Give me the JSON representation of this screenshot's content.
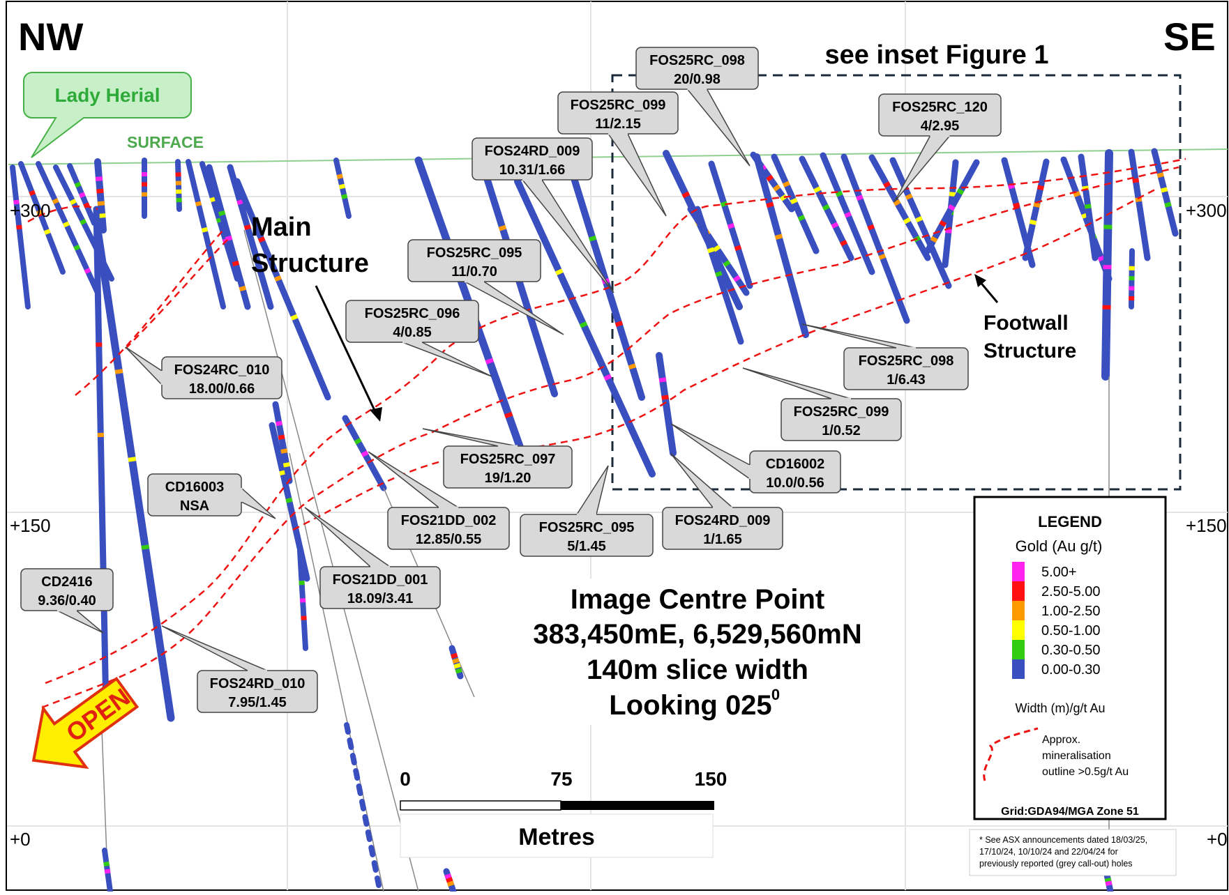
{
  "directions": {
    "left": "NW",
    "right": "SE"
  },
  "inset_title": "see inset Figure 1",
  "deposit_label": "Lady Herial",
  "surface_label": "SURFACE",
  "structures": {
    "main": [
      "Main",
      "Structure"
    ],
    "footwall": [
      "Footwall",
      "Structure"
    ]
  },
  "elevations": {
    "left": [
      "+300",
      "+150",
      "+0"
    ],
    "right": [
      "+300",
      "+150",
      "+0"
    ]
  },
  "open_label": "OPEN",
  "callouts": [
    {
      "hole": "FOS25RC_098",
      "result": "20/0.98"
    },
    {
      "hole": "FOS25RC_099",
      "result": "11/2.15"
    },
    {
      "hole": "FOS24RD_009",
      "result": "10.31/1.66"
    },
    {
      "hole": "FOS25RC_120",
      "result": "4/2.95"
    },
    {
      "hole": "FOS25RC_095",
      "result": "11/0.70"
    },
    {
      "hole": "FOS25RC_096",
      "result": "4/0.85"
    },
    {
      "hole": "FOS24RC_010",
      "result": "18.00/0.66"
    },
    {
      "hole": "FOS25RC_098",
      "result": "1/6.43"
    },
    {
      "hole": "FOS25RC_099",
      "result": "1/0.52"
    },
    {
      "hole": "CD16002",
      "result": "10.0/0.56"
    },
    {
      "hole": "FOS25RC_097",
      "result": "19/1.20"
    },
    {
      "hole": "CD16003",
      "result": "NSA"
    },
    {
      "hole": "FOS21DD_002",
      "result": "12.85/0.55"
    },
    {
      "hole": "FOS25RC_095",
      "result": "5/1.45"
    },
    {
      "hole": "FOS24RD_009",
      "result": "1/1.65"
    },
    {
      "hole": "FOS21DD_001",
      "result": "18.09/3.41"
    },
    {
      "hole": "CD2416",
      "result": "9.36/0.40"
    },
    {
      "hole": "FOS24RD_010",
      "result": "7.95/1.45"
    }
  ],
  "centre_info": {
    "title": "Image Centre Point",
    "coords": "383,450mE, 6,529,560mN",
    "slice": "140m slice width",
    "looking": "Looking 025",
    "looking_sup": "0"
  },
  "scale": {
    "ticks": [
      "0",
      "75",
      "150"
    ],
    "unit": "Metres"
  },
  "legend": {
    "title": "LEGEND",
    "subtitle": "Gold (Au g/t)",
    "items": [
      {
        "label": "5.00+",
        "color": "#ff22ee"
      },
      {
        "label": "2.50-5.00",
        "color": "#ff1111"
      },
      {
        "label": "1.00-2.50",
        "color": "#ff9a00"
      },
      {
        "label": "0.50-1.00",
        "color": "#ffff00"
      },
      {
        "label": "0.30-0.50",
        "color": "#33cc11"
      },
      {
        "label": "0.00-0.30",
        "color": "#3a4fbf"
      }
    ],
    "width_note": "Width (m)/g/t Au",
    "outline_note": [
      "Approx.",
      "mineralisation",
      "outline >0.5g/t Au"
    ],
    "grid": "Grid:GDA94/MGA Zone 51"
  },
  "footnote": [
    "* See ASX announcements dated 18/03/25,",
    "17/10/24, 10/10/24 and 22/04/24 for",
    "previously reported (grey call-out) holes"
  ],
  "colors": {
    "hole": "#3a4fbf",
    "outline": "#ee1111",
    "surface": "#8fd08f",
    "callout_fill": "#d9d9d9",
    "deposit_fill": "#c8f0c8",
    "deposit_text": "#2eaa3a"
  }
}
